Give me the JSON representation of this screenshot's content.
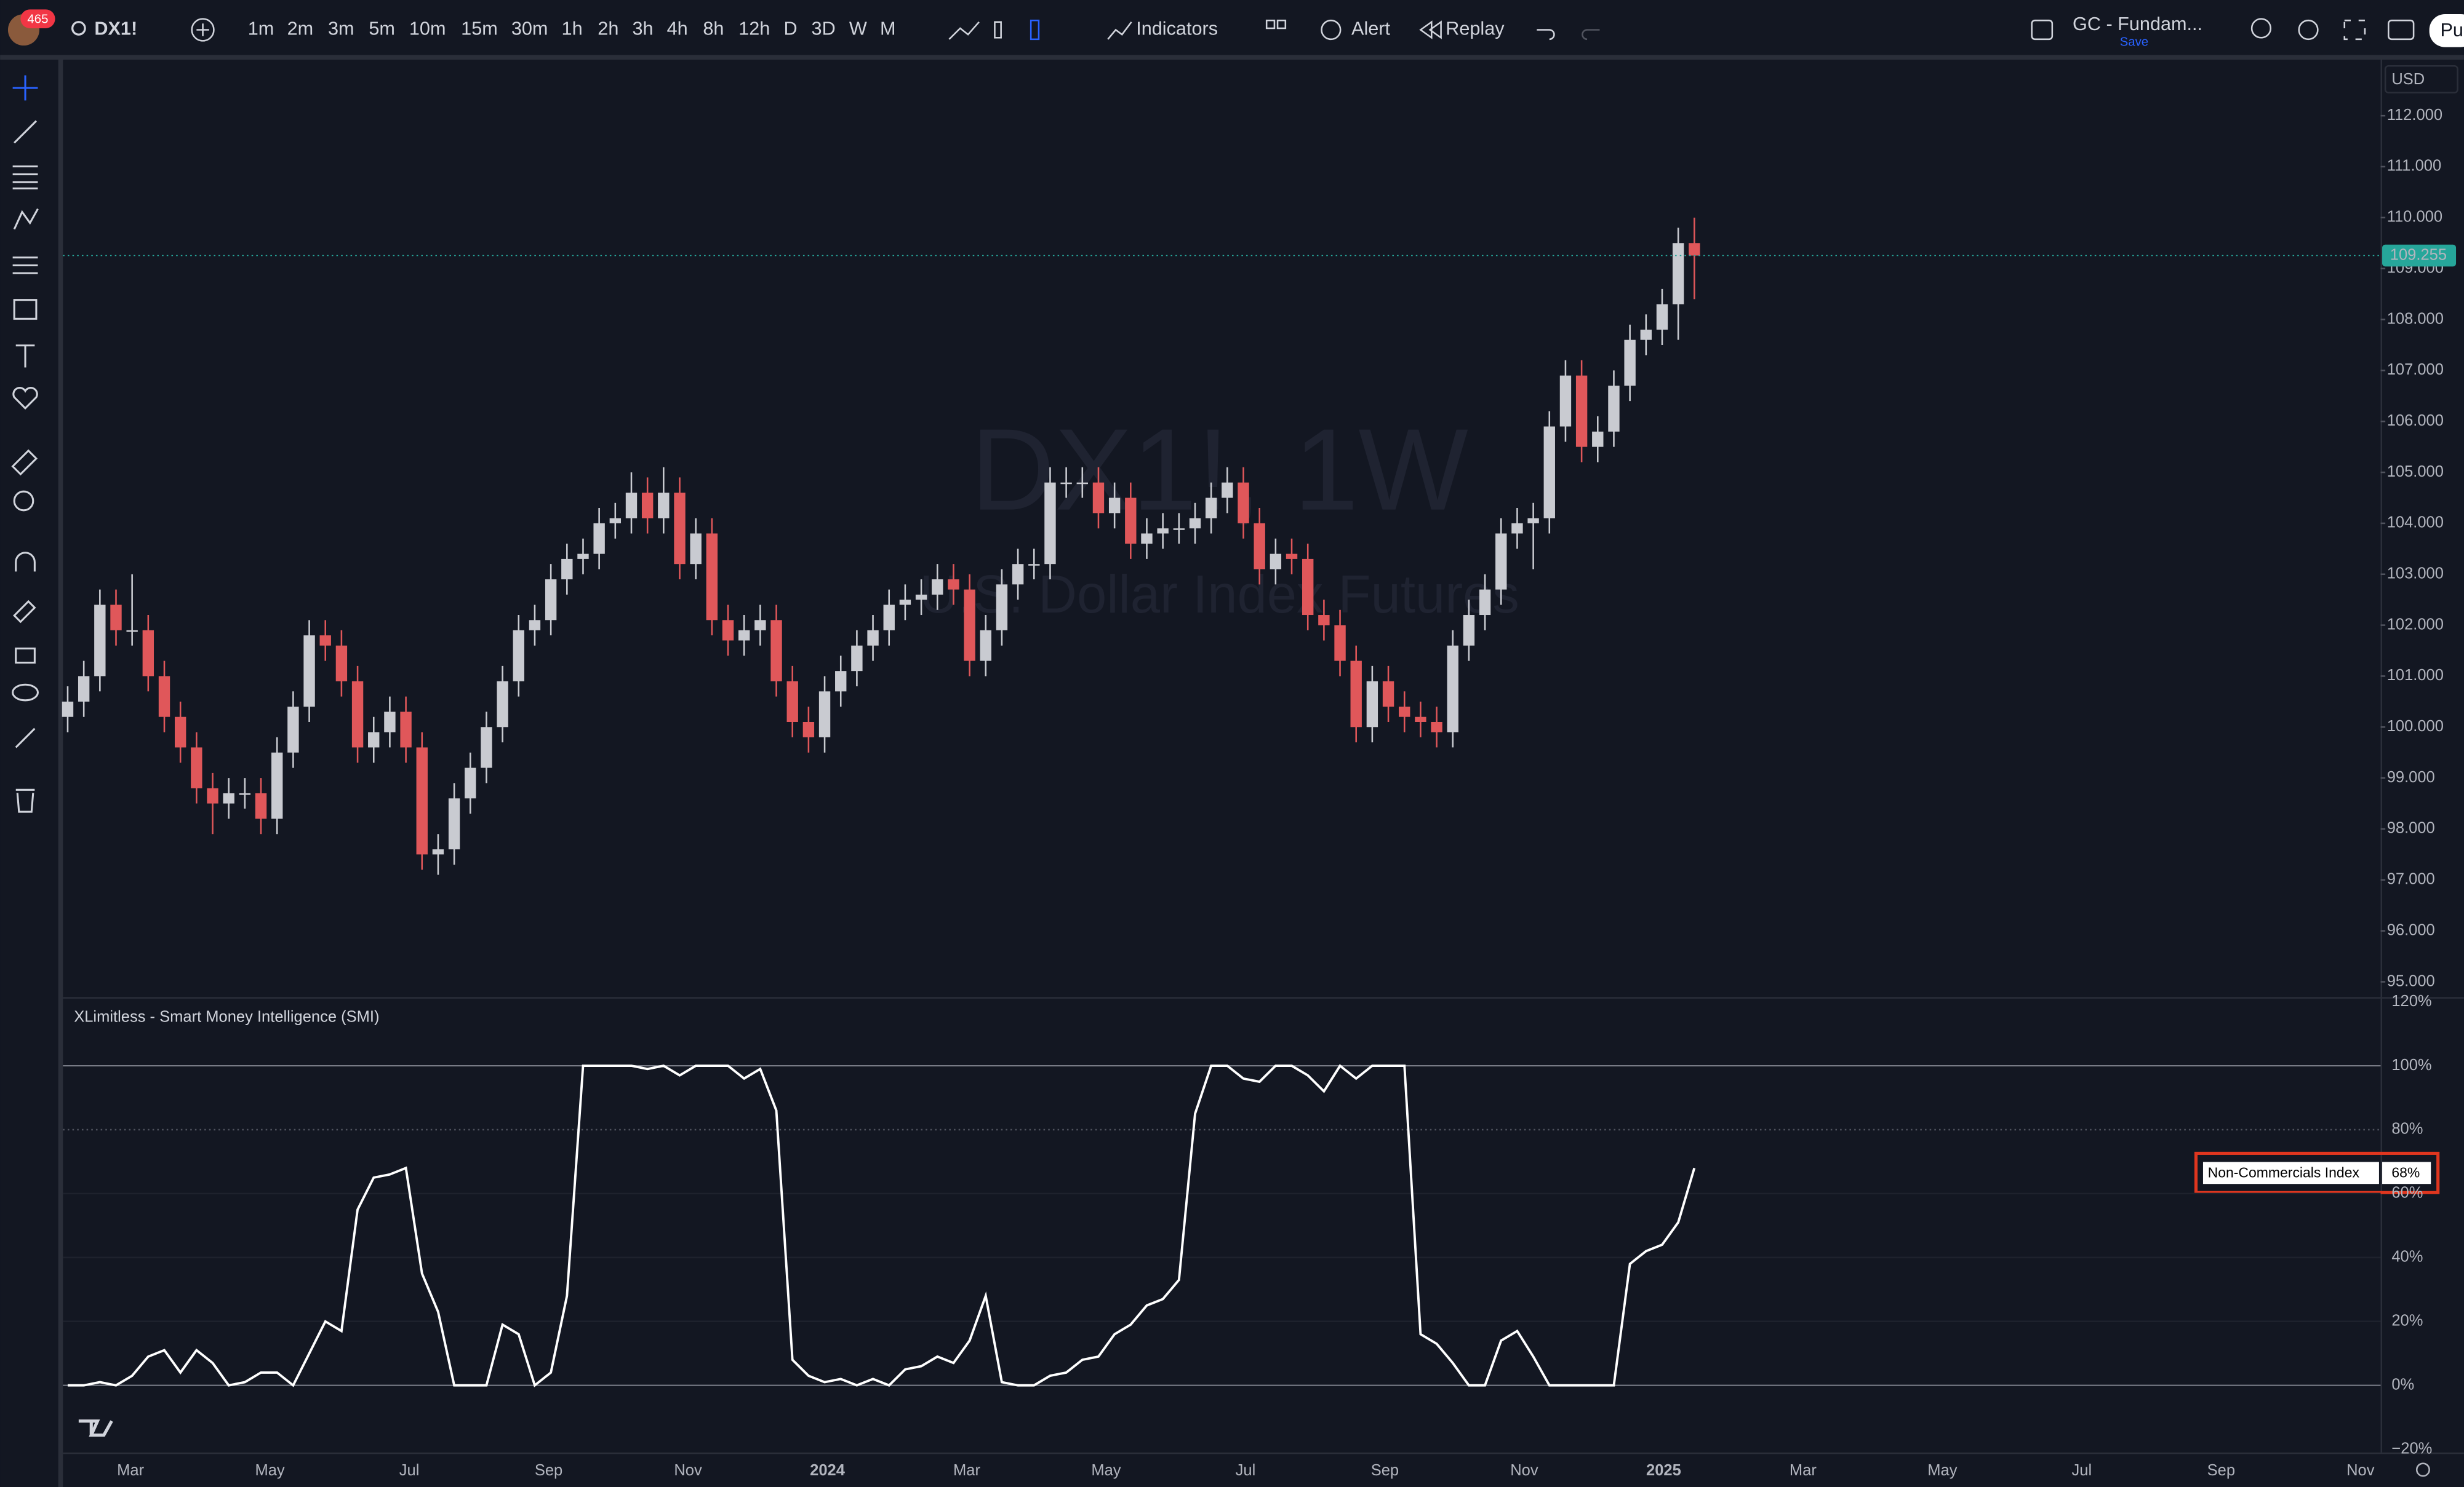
{
  "toolbar": {
    "badge": "465",
    "symbol": "DX1!",
    "timeframes": [
      "1m",
      "2m",
      "3m",
      "5m",
      "10m",
      "15m",
      "30m",
      "1h",
      "2h",
      "3h",
      "4h",
      "8h",
      "12h",
      "D",
      "3D",
      "W",
      "M"
    ],
    "indicators": "Indicators",
    "alert": "Alert",
    "replay": "Replay",
    "layout_name": "GC - Fundam...",
    "save": "Save",
    "currency": "USD",
    "publish": "Pu"
  },
  "chart_data": [
    {
      "type": "candlestick",
      "title": "DX1!, 1W",
      "subtitle": "U.S. Dollar Index Futures",
      "xtick_labels": [
        "Mar",
        "May",
        "Jul",
        "Sep",
        "Nov",
        "2024",
        "Mar",
        "May",
        "Jul",
        "Sep",
        "Nov",
        "2025",
        "Mar",
        "May",
        "Jul",
        "Sep",
        "Nov"
      ],
      "up_color": "#c9cbd1",
      "down_color": "#e0575a",
      "open": [
        100.2,
        100.5,
        101.0,
        102.4,
        101.9,
        101.9,
        101.0,
        100.2,
        99.6,
        98.8,
        98.5,
        98.7,
        98.7,
        98.2,
        99.5,
        100.4,
        101.8,
        101.6,
        100.9,
        99.6,
        99.9,
        100.3,
        99.6,
        97.5,
        97.6,
        98.6,
        99.2,
        100.0,
        100.9,
        101.9,
        102.1,
        102.9,
        103.3,
        103.4,
        104.0,
        104.1,
        104.6,
        104.1,
        104.6,
        103.2,
        103.8,
        102.1,
        101.7,
        101.9,
        102.1,
        100.9,
        100.1,
        99.8,
        100.7,
        101.1,
        101.6,
        101.9,
        102.4,
        102.5,
        102.6,
        102.9,
        102.7,
        101.3,
        101.9,
        102.8,
        103.2,
        103.2,
        104.8,
        104.8,
        104.8,
        104.2,
        104.5,
        103.6,
        103.8,
        103.9,
        103.9,
        104.1,
        104.5,
        104.8,
        104.0,
        103.1,
        103.4,
        103.3,
        102.2,
        102.0,
        101.3,
        100.0,
        100.9,
        100.4,
        100.2,
        100.1,
        99.9,
        101.6,
        102.2,
        102.7,
        103.8,
        104.0,
        104.1,
        105.9,
        106.9,
        105.5,
        105.8,
        106.7,
        107.6,
        107.8,
        108.3,
        109.5
      ],
      "high": [
        100.8,
        101.3,
        102.7,
        102.7,
        103.0,
        102.2,
        101.3,
        100.5,
        99.9,
        99.1,
        99.0,
        99.0,
        99.0,
        99.8,
        100.7,
        102.1,
        102.1,
        101.9,
        101.2,
        100.2,
        100.6,
        100.6,
        99.9,
        97.9,
        98.9,
        99.5,
        100.3,
        101.2,
        102.2,
        102.4,
        103.2,
        103.6,
        103.7,
        104.3,
        104.4,
        105.0,
        104.9,
        105.1,
        104.9,
        104.1,
        104.1,
        102.4,
        102.2,
        102.4,
        102.4,
        101.2,
        100.4,
        101.0,
        101.4,
        101.9,
        102.2,
        102.7,
        102.8,
        102.9,
        103.2,
        103.2,
        103.0,
        102.2,
        103.1,
        103.5,
        103.5,
        105.1,
        105.1,
        105.1,
        105.1,
        104.8,
        104.8,
        104.1,
        104.2,
        104.2,
        104.4,
        104.8,
        105.1,
        105.1,
        104.3,
        103.7,
        103.7,
        103.6,
        102.5,
        102.3,
        101.6,
        101.2,
        101.2,
        100.7,
        100.5,
        100.4,
        101.9,
        102.5,
        103.0,
        104.1,
        104.3,
        104.4,
        106.2,
        107.2,
        107.2,
        106.1,
        107.0,
        107.9,
        108.1,
        108.6,
        109.8,
        110.0
      ],
      "low": [
        99.9,
        100.2,
        100.7,
        101.6,
        101.6,
        100.7,
        99.9,
        99.3,
        98.5,
        97.9,
        98.2,
        98.4,
        97.9,
        97.9,
        99.2,
        100.1,
        101.3,
        100.6,
        99.3,
        99.3,
        99.6,
        99.3,
        97.2,
        97.1,
        97.3,
        98.3,
        98.9,
        99.7,
        100.6,
        101.6,
        101.8,
        102.6,
        103.0,
        103.1,
        103.7,
        103.8,
        103.8,
        103.8,
        102.9,
        102.9,
        101.8,
        101.4,
        101.4,
        101.6,
        100.6,
        99.8,
        99.5,
        99.5,
        100.4,
        100.8,
        101.3,
        101.6,
        102.1,
        102.2,
        102.3,
        102.4,
        101.0,
        101.0,
        101.6,
        102.5,
        102.9,
        102.9,
        104.5,
        104.5,
        103.9,
        103.9,
        103.3,
        103.3,
        103.5,
        103.6,
        103.6,
        103.8,
        104.2,
        103.7,
        102.8,
        102.8,
        103.0,
        101.9,
        101.7,
        101.0,
        99.7,
        99.7,
        100.1,
        99.9,
        99.8,
        99.6,
        99.6,
        101.3,
        101.9,
        102.4,
        103.5,
        103.1,
        103.8,
        105.6,
        105.2,
        105.2,
        105.5,
        106.4,
        107.3,
        107.5,
        107.6,
        108.4
      ],
      "close": [
        100.5,
        101.0,
        102.4,
        101.9,
        101.9,
        101.0,
        100.2,
        99.6,
        98.8,
        98.5,
        98.7,
        98.7,
        98.2,
        99.5,
        100.4,
        101.8,
        101.6,
        100.9,
        99.6,
        99.9,
        100.3,
        99.6,
        97.5,
        97.6,
        98.6,
        99.2,
        100.0,
        100.9,
        101.9,
        102.1,
        102.9,
        103.3,
        103.4,
        104.0,
        104.1,
        104.6,
        104.1,
        104.6,
        103.2,
        103.8,
        102.1,
        101.7,
        101.9,
        102.1,
        100.9,
        100.1,
        99.8,
        100.7,
        101.1,
        101.6,
        101.9,
        102.4,
        102.5,
        102.6,
        102.9,
        102.7,
        101.3,
        101.9,
        102.8,
        103.2,
        103.2,
        104.8,
        104.8,
        104.8,
        104.2,
        104.5,
        103.6,
        103.8,
        103.9,
        103.9,
        104.1,
        104.5,
        104.8,
        104.0,
        103.1,
        103.4,
        103.3,
        102.2,
        102.0,
        101.3,
        100.0,
        100.9,
        100.4,
        100.2,
        100.1,
        99.9,
        101.6,
        102.2,
        102.7,
        103.8,
        104.0,
        104.1,
        105.9,
        106.9,
        105.5,
        105.8,
        106.7,
        107.6,
        107.8,
        108.3,
        109.5,
        109.255
      ],
      "price_label_color": "#26a69a",
      "ylim": [
        94.7,
        113.1
      ],
      "yticks": [
        {
          "value": 95,
          "label": "95.000"
        },
        {
          "value": 96,
          "label": "96.000"
        },
        {
          "value": 97,
          "label": "97.000"
        },
        {
          "value": 98,
          "label": "98.000"
        },
        {
          "value": 99,
          "label": "99.000"
        },
        {
          "value": 100,
          "label": "100.000"
        },
        {
          "value": 101,
          "label": "101.000"
        },
        {
          "value": 102,
          "label": "102.000"
        },
        {
          "value": 103,
          "label": "103.000"
        },
        {
          "value": 104,
          "label": "104.000"
        },
        {
          "value": 105,
          "label": "105.000"
        },
        {
          "value": 106,
          "label": "106.000"
        },
        {
          "value": 107,
          "label": "107.000"
        },
        {
          "value": 108,
          "label": "108.000"
        },
        {
          "value": 109,
          "label": "109.000"
        },
        {
          "value": 110,
          "label": "110.000"
        },
        {
          "value": 111,
          "label": "111.000"
        },
        {
          "value": 112,
          "label": "112.000"
        }
      ]
    },
    {
      "type": "line",
      "title": "XLimitless - Smart Money Intelligence (SMI)",
      "series": [
        {
          "name": "Non-Commercials Index",
          "color": "#ffffff",
          "values": [
            0,
            0,
            1,
            0,
            3,
            9,
            11,
            4,
            11,
            7,
            0,
            1,
            4,
            4,
            0,
            10,
            20,
            17,
            55,
            65,
            66,
            68,
            35,
            23,
            0,
            0,
            0,
            19,
            16,
            0,
            4,
            28,
            100,
            100,
            100,
            100,
            99,
            100,
            97,
            100,
            100,
            100,
            96,
            99,
            86,
            8,
            3,
            1,
            2,
            0,
            2,
            0,
            5,
            6,
            9,
            7,
            14,
            28,
            1,
            0,
            0,
            3,
            4,
            8,
            9,
            16,
            19,
            25,
            27,
            33,
            85,
            100,
            100,
            96,
            95,
            100,
            100,
            97,
            92,
            100,
            96,
            100,
            100,
            100,
            16,
            13,
            7,
            0,
            0,
            14,
            17,
            9,
            0,
            0,
            0,
            0,
            0,
            38,
            42,
            44,
            51,
            68
          ],
          "last_value_label": "68%"
        }
      ],
      "ylim": [
        -21,
        121
      ],
      "yticks": [
        {
          "value": -20,
          "label": "−20%"
        },
        {
          "value": 0,
          "label": "0%"
        },
        {
          "value": 20,
          "label": "20%"
        },
        {
          "value": 40,
          "label": "40%"
        },
        {
          "value": 60,
          "label": "60%"
        },
        {
          "value": 80,
          "label": "80%"
        },
        {
          "value": 100,
          "label": "100%"
        },
        {
          "value": 120,
          "label": "120%"
        }
      ]
    }
  ]
}
